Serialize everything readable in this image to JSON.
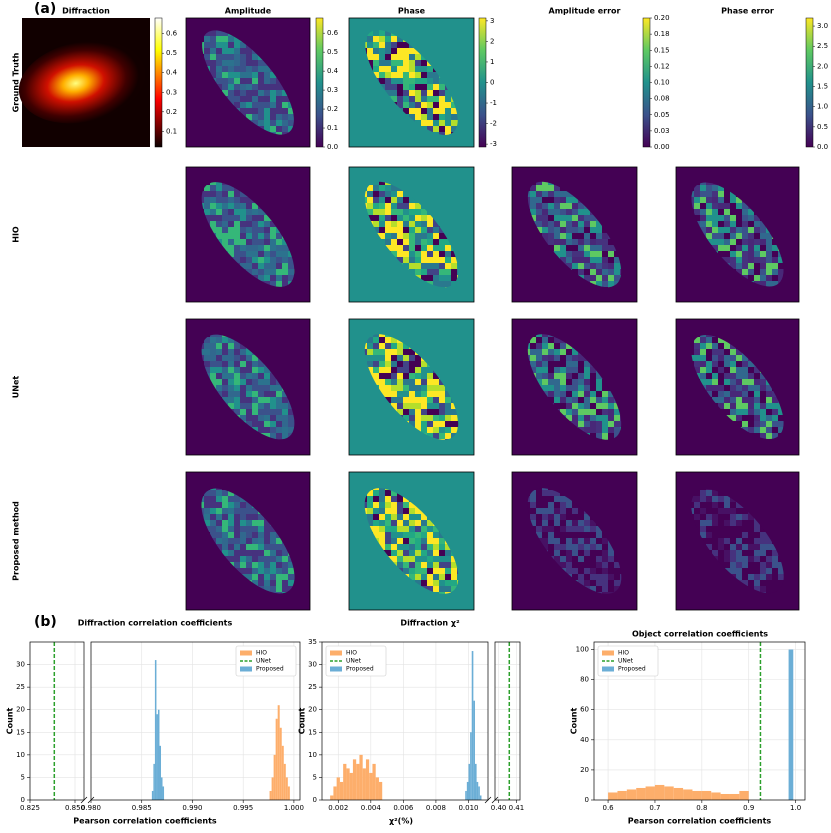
{
  "panel_a": {
    "label": "(a)",
    "columns": [
      "Diffraction",
      "Amplitude",
      "Phase",
      "Amplitude error",
      "Phase error"
    ],
    "rows": [
      "Ground Truth",
      "HIO",
      "UNet",
      "Proposed method"
    ],
    "colorbars": [
      {
        "cmap": "hot",
        "lim": [
          0.02,
          0.68
        ],
        "ticks": [
          0.1,
          0.2,
          0.3,
          0.4,
          0.5,
          0.6
        ]
      },
      {
        "cmap": "viridis",
        "lim": [
          0,
          0.68
        ],
        "ticks": [
          {
            "value": 0,
            "label": "0.0"
          },
          0.1,
          0.2,
          0.3,
          0.4,
          0.5,
          0.6
        ]
      },
      {
        "cmap": "viridis",
        "lim": [
          -3.14,
          3.14
        ],
        "ticks": [
          -3,
          -2,
          -1,
          0,
          1,
          2,
          3
        ]
      },
      {
        "cmap": "viridis",
        "lim": [
          0,
          0.2
        ],
        "ticks": [
          {
            "value": 0,
            "label": "0.00"
          },
          {
            "value": 0.025,
            "label": "0.03"
          },
          {
            "value": 0.05,
            "label": "0.05"
          },
          {
            "value": 0.075,
            "label": "0.08"
          },
          {
            "value": 0.1,
            "label": "0.10"
          },
          {
            "value": 0.125,
            "label": "0.12"
          },
          {
            "value": 0.15,
            "label": "0.15"
          },
          {
            "value": 0.175,
            "label": "0.18"
          },
          {
            "value": 0.2,
            "label": "0.20"
          }
        ]
      },
      {
        "cmap": "viridis",
        "lim": [
          0,
          3.2
        ],
        "ticks": [
          {
            "value": 0,
            "label": "0.0"
          },
          0.5,
          {
            "value": 1,
            "label": "1.0"
          },
          1.5,
          {
            "value": 2,
            "label": "2.0"
          },
          2.5,
          {
            "value": 3,
            "label": "3.0"
          }
        ]
      }
    ]
  },
  "panel_b_label": "(b)",
  "chart_data": [
    {
      "type": "histogram",
      "title": "Diffraction correlation coefficients",
      "x_label": "Pearson correlation coefficients",
      "y_label": "Count",
      "xlim": [
        0.825,
        0.855
      ],
      "xticks": [
        0.825,
        {
          "value": 0.85,
          "label": "0.850"
        }
      ],
      "xlim2": [
        0.98,
        1.0006
      ],
      "xticks2": [
        {
          "value": 0.98,
          "label": "0.980"
        },
        0.985,
        {
          "value": 0.99,
          "label": "0.990"
        },
        0.995,
        {
          "value": 1,
          "label": "1.000"
        }
      ],
      "ylim": [
        0,
        35
      ],
      "yticks": [
        0,
        5,
        10,
        15,
        20,
        25,
        30
      ],
      "grid": true,
      "legend": "upper right",
      "series": [
        {
          "name": "HIO",
          "color": "#fdae6b",
          "bins": [
            0.9976,
            0.9978,
            0.998,
            0.9982,
            0.9984,
            0.9986,
            0.9988,
            0.999,
            0.9992,
            0.9994,
            0.9996
          ],
          "values": [
            2,
            5,
            10,
            18,
            21,
            16,
            12,
            8,
            5,
            3
          ]
        },
        {
          "name": "UNet",
          "color": "#2ca02c",
          "x": 0.8385
        },
        {
          "name": "Proposed",
          "color": "#6baed6",
          "bins": [
            0.986,
            0.98615,
            0.9863,
            0.98645,
            0.9866,
            0.98675,
            0.9869,
            0.98705,
            0.9872
          ],
          "values": [
            2,
            8,
            31,
            19,
            20,
            12,
            5,
            3
          ]
        }
      ]
    },
    {
      "type": "histogram",
      "title": "Diffraction χ²",
      "x_label": "χ²(%)",
      "y_label": "Count",
      "xlim": [
        0.001,
        0.0112
      ],
      "xticks": [
        0.002,
        0.004,
        0.006,
        0.008,
        {
          "value": 0.01,
          "label": "0.010"
        }
      ],
      "xlim2": [
        0.398,
        0.412
      ],
      "xticks2": [
        {
          "value": 0.4,
          "label": "0.40"
        },
        0.41
      ],
      "ylim": [
        0,
        35
      ],
      "yticks": [
        0,
        5,
        10,
        15,
        20,
        25,
        30,
        35
      ],
      "grid": true,
      "legend": "upper left",
      "series": [
        {
          "name": "HIO",
          "color": "#fdae6b",
          "bins": [
            0.0015,
            0.0017,
            0.0019,
            0.0021,
            0.0023,
            0.0025,
            0.0027,
            0.0029,
            0.0031,
            0.0033,
            0.0035,
            0.0037,
            0.0039,
            0.0041,
            0.0043,
            0.0045,
            0.0047
          ],
          "values": [
            1,
            3,
            5,
            4,
            8,
            7,
            6,
            9,
            8,
            10,
            7,
            9,
            6,
            8,
            5,
            4
          ]
        },
        {
          "name": "UNet",
          "color": "#2ca02c",
          "x": 0.406
        },
        {
          "name": "Proposed",
          "color": "#6baed6",
          "bins": [
            0.0098,
            0.0099,
            0.01,
            0.0101,
            0.0102,
            0.0103,
            0.0104,
            0.0105,
            0.0106,
            0.0107,
            0.0108
          ],
          "values": [
            2,
            4,
            8,
            15,
            33,
            22,
            8,
            4,
            3,
            1
          ]
        }
      ]
    },
    {
      "type": "histogram",
      "title": "Object correlation coefficients",
      "x_label": "Pearson correlation coefficients",
      "y_label": "Count",
      "xlim": [
        0.57,
        1.02
      ],
      "xticks": [
        0.6,
        0.7,
        0.8,
        0.9,
        {
          "value": 1,
          "label": "1.0"
        }
      ],
      "ylim": [
        0,
        105
      ],
      "yticks": [
        0,
        20,
        40,
        60,
        80,
        100
      ],
      "grid": true,
      "legend": "upper left",
      "series": [
        {
          "name": "HIO",
          "color": "#fdae6b",
          "bins": [
            0.6,
            0.62,
            0.64,
            0.66,
            0.68,
            0.7,
            0.72,
            0.74,
            0.76,
            0.78,
            0.8,
            0.82,
            0.84,
            0.86,
            0.88,
            0.9
          ],
          "values": [
            5,
            6,
            7,
            8,
            9,
            10,
            9,
            8,
            7,
            6,
            6,
            5,
            4,
            4,
            6
          ]
        },
        {
          "name": "UNet",
          "color": "#2ca02c",
          "x": 0.925
        },
        {
          "name": "Proposed",
          "color": "#6baed6",
          "bins": [
            0.985,
            0.995
          ],
          "values": [
            100
          ]
        }
      ]
    }
  ]
}
